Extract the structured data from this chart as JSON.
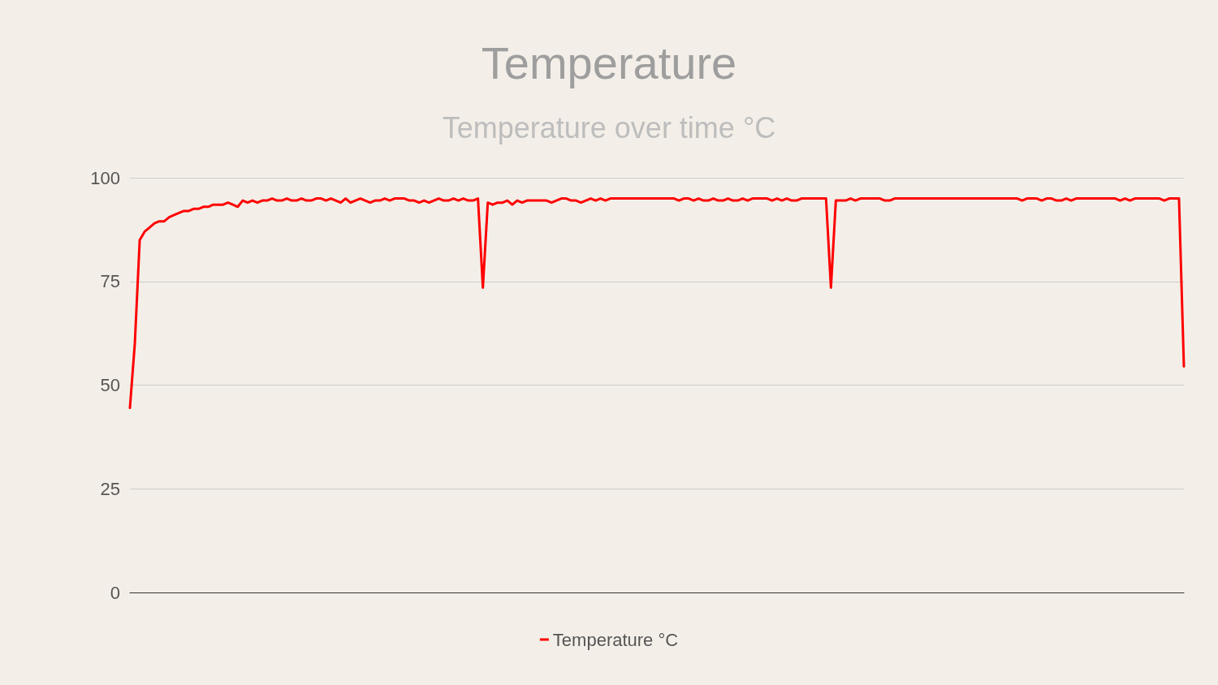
{
  "chart_data": {
    "type": "line",
    "title": "Temperature",
    "subtitle": "Temperature over time °C",
    "categories": [
      null,
      null,
      null,
      null,
      null,
      null,
      null,
      null,
      null,
      null,
      null,
      null,
      null,
      null,
      null,
      null,
      null,
      null,
      null,
      null,
      null,
      null,
      null,
      null,
      null,
      null,
      null,
      null,
      null,
      null,
      null,
      null,
      null,
      null,
      null,
      null,
      null,
      null,
      null,
      null,
      null,
      null,
      null,
      null,
      null,
      null,
      null,
      null,
      null,
      null,
      null,
      null,
      null,
      null,
      null,
      null,
      null,
      null,
      null,
      null,
      null,
      null,
      null,
      null,
      null,
      null,
      null,
      null,
      null,
      null,
      null,
      null,
      null,
      null,
      null,
      null,
      null,
      null,
      null,
      null,
      null,
      null,
      null,
      null,
      null,
      null,
      null,
      null,
      null,
      null,
      null,
      null,
      null,
      null,
      null,
      null,
      null,
      null,
      null,
      null,
      null,
      null,
      null,
      null,
      null,
      null,
      null,
      null,
      null,
      null,
      null,
      null,
      null,
      null,
      null,
      null,
      null,
      null,
      null,
      null,
      null,
      null,
      null,
      null,
      null,
      null,
      null,
      null,
      null,
      null,
      null,
      null,
      null,
      null,
      null,
      null,
      null,
      null,
      null,
      null,
      null,
      null,
      null,
      null,
      null,
      null,
      null,
      null,
      null,
      null,
      null,
      null,
      null,
      null,
      null,
      null,
      null,
      null,
      null,
      null,
      null,
      null,
      null,
      null,
      null,
      null,
      null,
      null,
      null,
      null,
      null,
      null,
      null,
      null,
      null,
      null,
      null,
      null,
      null,
      null,
      null,
      null,
      null,
      null,
      null,
      null,
      null,
      null,
      null,
      null,
      null,
      null,
      null,
      null,
      null,
      null,
      null,
      null,
      null,
      null,
      null,
      null,
      null,
      null,
      null,
      null,
      null,
      null,
      null,
      null,
      null,
      null,
      null,
      null,
      null,
      null
    ],
    "series": [
      {
        "name": "Temperature °C",
        "color": "#ff0000",
        "values": [
          44.5,
          60,
          85,
          87,
          88,
          89,
          89.5,
          89.5,
          90.5,
          91,
          91.5,
          92,
          92,
          92.5,
          92.5,
          93,
          93,
          93.5,
          93.5,
          93.5,
          94,
          93.5,
          93,
          94.5,
          94,
          94.5,
          94,
          94.5,
          94.5,
          95,
          94.5,
          94.5,
          95,
          94.5,
          94.5,
          95,
          94.5,
          94.5,
          95,
          95,
          94.5,
          95,
          94.5,
          94,
          95,
          94,
          94.5,
          95,
          94.5,
          94,
          94.5,
          94.5,
          95,
          94.5,
          95,
          95,
          95,
          94.5,
          94.5,
          94,
          94.5,
          94,
          94.5,
          95,
          94.5,
          94.5,
          95,
          94.5,
          95,
          94.5,
          94.5,
          95,
          73.5,
          94,
          93.5,
          94,
          94,
          94.5,
          93.5,
          94.5,
          94,
          94.5,
          94.5,
          94.5,
          94.5,
          94.5,
          94,
          94.5,
          95,
          95,
          94.5,
          94.5,
          94,
          94.5,
          95,
          94.5,
          95,
          94.5,
          95,
          95,
          95,
          95,
          95,
          95,
          95,
          95,
          95,
          95,
          95,
          95,
          95,
          95,
          94.5,
          95,
          95,
          94.5,
          95,
          94.5,
          94.5,
          95,
          94.5,
          94.5,
          95,
          94.5,
          94.5,
          95,
          94.5,
          95,
          95,
          95,
          95,
          94.5,
          95,
          94.5,
          95,
          94.5,
          94.5,
          95,
          95,
          95,
          95,
          95,
          95,
          73.5,
          94.5,
          94.5,
          94.5,
          95,
          94.5,
          95,
          95,
          95,
          95,
          95,
          94.5,
          94.5,
          95,
          95,
          95,
          95,
          95,
          95,
          95,
          95,
          95,
          95,
          95,
          95,
          95,
          95,
          95,
          95,
          95,
          95,
          95,
          95,
          95,
          95,
          95,
          95,
          95,
          95,
          94.5,
          95,
          95,
          95,
          94.5,
          95,
          95,
          94.5,
          94.5,
          95,
          94.5,
          95,
          95,
          95,
          95,
          95,
          95,
          95,
          95,
          95,
          94.5,
          95,
          94.5,
          95,
          95,
          95,
          95,
          95,
          95,
          94.5,
          95,
          95,
          95,
          54.5
        ]
      }
    ],
    "ylim": [
      0,
      100
    ],
    "yticks": [
      0,
      25,
      50,
      75,
      100
    ],
    "grid": "y",
    "legend": "bottom",
    "marker": "none",
    "line_style": "solid"
  }
}
